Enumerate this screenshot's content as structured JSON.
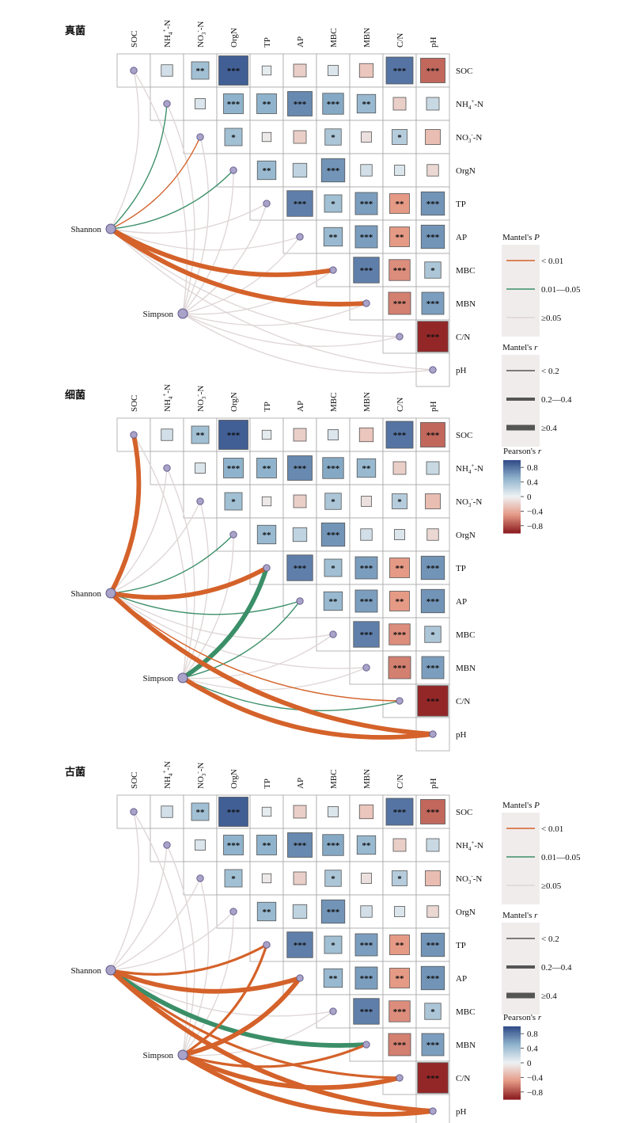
{
  "chart_data": {
    "type": "heatmap",
    "variables": [
      "SOC",
      "NH4+-N",
      "NO3--N",
      "OrgN",
      "TP",
      "AP",
      "MBC",
      "MBN",
      "C/N",
      "pH"
    ],
    "nodes": [
      "Shannon",
      "Simpson"
    ],
    "correlation_matrix": {
      "SOC": {
        "NH4+-N": [
          0.15,
          ""
        ],
        "NO3--N": [
          0.4,
          "**"
        ],
        "OrgN": [
          0.9,
          "***"
        ],
        "TP": [
          0.05,
          ""
        ],
        "AP": [
          -0.2,
          ""
        ],
        "MBC": [
          0.1,
          ""
        ],
        "MBN": [
          -0.25,
          ""
        ],
        "C/N": [
          0.8,
          "***"
        ],
        "pH": [
          -0.7,
          "***"
        ]
      },
      "NH4+-N": {
        "NO3--N": [
          0.1,
          ""
        ],
        "OrgN": [
          0.5,
          "***"
        ],
        "TP": [
          0.5,
          "**"
        ],
        "AP": [
          0.7,
          "***"
        ],
        "MBC": [
          0.55,
          "***"
        ],
        "MBN": [
          0.45,
          "**"
        ],
        "C/N": [
          -0.2,
          ""
        ],
        "pH": [
          0.2,
          ""
        ]
      },
      "NO3--N": {
        "OrgN": [
          0.4,
          "*"
        ],
        "TP": [
          -0.05,
          ""
        ],
        "AP": [
          -0.2,
          ""
        ],
        "MBC": [
          0.35,
          "*"
        ],
        "MBN": [
          -0.1,
          ""
        ],
        "C/N": [
          0.3,
          "*"
        ],
        "pH": [
          -0.3,
          ""
        ]
      },
      "OrgN": {
        "TP": [
          0.45,
          "**"
        ],
        "AP": [
          0.25,
          ""
        ],
        "MBC": [
          0.65,
          "***"
        ],
        "MBN": [
          0.15,
          ""
        ],
        "C/N": [
          0.1,
          ""
        ],
        "pH": [
          -0.15,
          ""
        ]
      },
      "TP": {
        "AP": [
          0.75,
          "***"
        ],
        "MBC": [
          0.4,
          "*"
        ],
        "MBN": [
          0.6,
          "***"
        ],
        "C/N": [
          -0.5,
          "**"
        ],
        "pH": [
          0.65,
          "***"
        ]
      },
      "AP": {
        "MBC": [
          0.45,
          "**"
        ],
        "MBN": [
          0.6,
          "***"
        ],
        "C/N": [
          -0.5,
          "**"
        ],
        "pH": [
          0.65,
          "***"
        ]
      },
      "MBC": {
        "MBN": [
          0.75,
          "***"
        ],
        "C/N": [
          -0.55,
          "***"
        ],
        "pH": [
          0.35,
          "*"
        ]
      },
      "MBN": {
        "C/N": [
          -0.6,
          "***"
        ],
        "pH": [
          0.6,
          "***"
        ]
      },
      "C/N": {
        "pH": [
          -0.95,
          "***"
        ]
      }
    },
    "panels": [
      {
        "name": "真菌",
        "links": {
          "Shannon": {
            "SOC": [
              "ns",
              1
            ],
            "NH4+-N": [
              "mid",
              1
            ],
            "NO3--N": [
              "low",
              1
            ],
            "OrgN": [
              "mid",
              1
            ],
            "TP": [
              "ns",
              1
            ],
            "AP": [
              "ns",
              1
            ],
            "MBC": [
              "low",
              3
            ],
            "MBN": [
              "low",
              3
            ],
            "C/N": [
              "ns",
              1
            ],
            "pH": [
              "ns",
              1
            ]
          },
          "Simpson": {
            "SOC": [
              "ns",
              1
            ],
            "NH4+-N": [
              "ns",
              1
            ],
            "NO3--N": [
              "ns",
              1
            ],
            "OrgN": [
              "ns",
              1
            ],
            "TP": [
              "ns",
              1
            ],
            "AP": [
              "ns",
              1
            ],
            "MBC": [
              "ns",
              1
            ],
            "MBN": [
              "ns",
              1
            ],
            "C/N": [
              "ns",
              1
            ],
            "pH": [
              "ns",
              1
            ]
          }
        }
      },
      {
        "name": "细菌",
        "links": {
          "Shannon": {
            "SOC": [
              "low",
              3
            ],
            "NH4+-N": [
              "ns",
              1
            ],
            "NO3--N": [
              "ns",
              1
            ],
            "OrgN": [
              "mid",
              1
            ],
            "TP": [
              "low",
              3
            ],
            "AP": [
              "mid",
              1
            ],
            "MBC": [
              "ns",
              1
            ],
            "MBN": [
              "ns",
              1
            ],
            "C/N": [
              "low",
              1
            ],
            "pH": [
              "low",
              3
            ]
          },
          "Simpson": {
            "SOC": [
              "ns",
              1
            ],
            "NH4+-N": [
              "ns",
              1
            ],
            "NO3--N": [
              "ns",
              1
            ],
            "OrgN": [
              "ns",
              1
            ],
            "TP": [
              "mid",
              3
            ],
            "AP": [
              "mid",
              1
            ],
            "MBC": [
              "ns",
              1
            ],
            "MBN": [
              "ns",
              1
            ],
            "C/N": [
              "mid",
              1
            ],
            "pH": [
              "low",
              3
            ]
          }
        }
      },
      {
        "name": "古菌",
        "links": {
          "Shannon": {
            "SOC": [
              "ns",
              1
            ],
            "NH4+-N": [
              "ns",
              1
            ],
            "NO3--N": [
              "ns",
              1
            ],
            "OrgN": [
              "ns",
              1
            ],
            "TP": [
              "low",
              2
            ],
            "AP": [
              "low",
              3
            ],
            "MBC": [
              "ns",
              1
            ],
            "MBN": [
              "mid",
              3
            ],
            "C/N": [
              "low",
              2
            ],
            "pH": [
              "low",
              3
            ]
          },
          "Simpson": {
            "SOC": [
              "ns",
              1
            ],
            "NH4+-N": [
              "ns",
              1
            ],
            "NO3--N": [
              "ns",
              1
            ],
            "OrgN": [
              "ns",
              1
            ],
            "TP": [
              "low",
              2
            ],
            "AP": [
              "low",
              3
            ],
            "MBC": [
              "ns",
              1
            ],
            "MBN": [
              "low",
              2
            ],
            "C/N": [
              "low",
              3
            ],
            "pH": [
              "low",
              3
            ]
          }
        }
      }
    ],
    "legend": {
      "mantel_p_title": "Mantel's P",
      "mantel_p": [
        {
          "key": "low",
          "label": "< 0.01",
          "color": "#d4622a"
        },
        {
          "key": "mid",
          "label": "0.01—0.05",
          "color": "#3b8f68"
        },
        {
          "key": "ns",
          "label": "≥0.05",
          "color": "#ddd3d3"
        }
      ],
      "mantel_r_title": "Mantel's r",
      "mantel_r": [
        "< 0.2",
        "0.2—0.4",
        "≥0.4"
      ],
      "pearson_title": "Pearson's r",
      "pearson_ticks": [
        0.8,
        0.4,
        0,
        -0.4,
        -0.8
      ]
    },
    "colors": {
      "positive": "#2e4a87",
      "neutral": "#eef2f4",
      "negative": "#8a1a1e",
      "node": "#a9a3c9"
    }
  }
}
